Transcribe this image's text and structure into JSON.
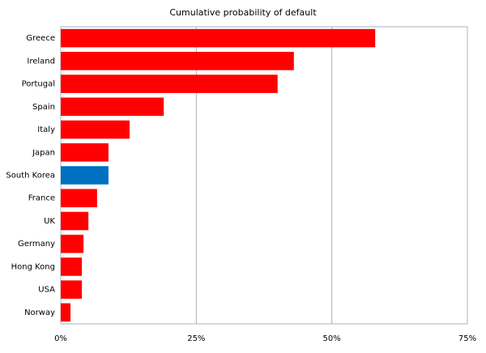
{
  "chart_data": {
    "type": "barh",
    "title": "Cumulative probability of default",
    "categories": [
      "Greece",
      "Ireland",
      "Portugal",
      "Spain",
      "Italy",
      "Japan",
      "South Korea",
      "France",
      "UK",
      "Germany",
      "Hong Kong",
      "USA",
      "Norway"
    ],
    "values": [
      58,
      43,
      40,
      19,
      12.7,
      8.8,
      8.8,
      6.7,
      5.1,
      4.2,
      3.9,
      3.9,
      1.8
    ],
    "colors": [
      "#ff0000",
      "#ff0000",
      "#ff0000",
      "#ff0000",
      "#ff0000",
      "#ff0000",
      "#0070c0",
      "#ff0000",
      "#ff0000",
      "#ff0000",
      "#ff0000",
      "#ff0000",
      "#ff0000"
    ],
    "xlim": [
      0,
      75
    ],
    "xticks": [
      {
        "value": 0,
        "label": "0%"
      },
      {
        "value": 25,
        "label": "25%"
      },
      {
        "value": 50,
        "label": "50%"
      },
      {
        "value": 75,
        "label": "75%"
      }
    ],
    "grid": true
  }
}
